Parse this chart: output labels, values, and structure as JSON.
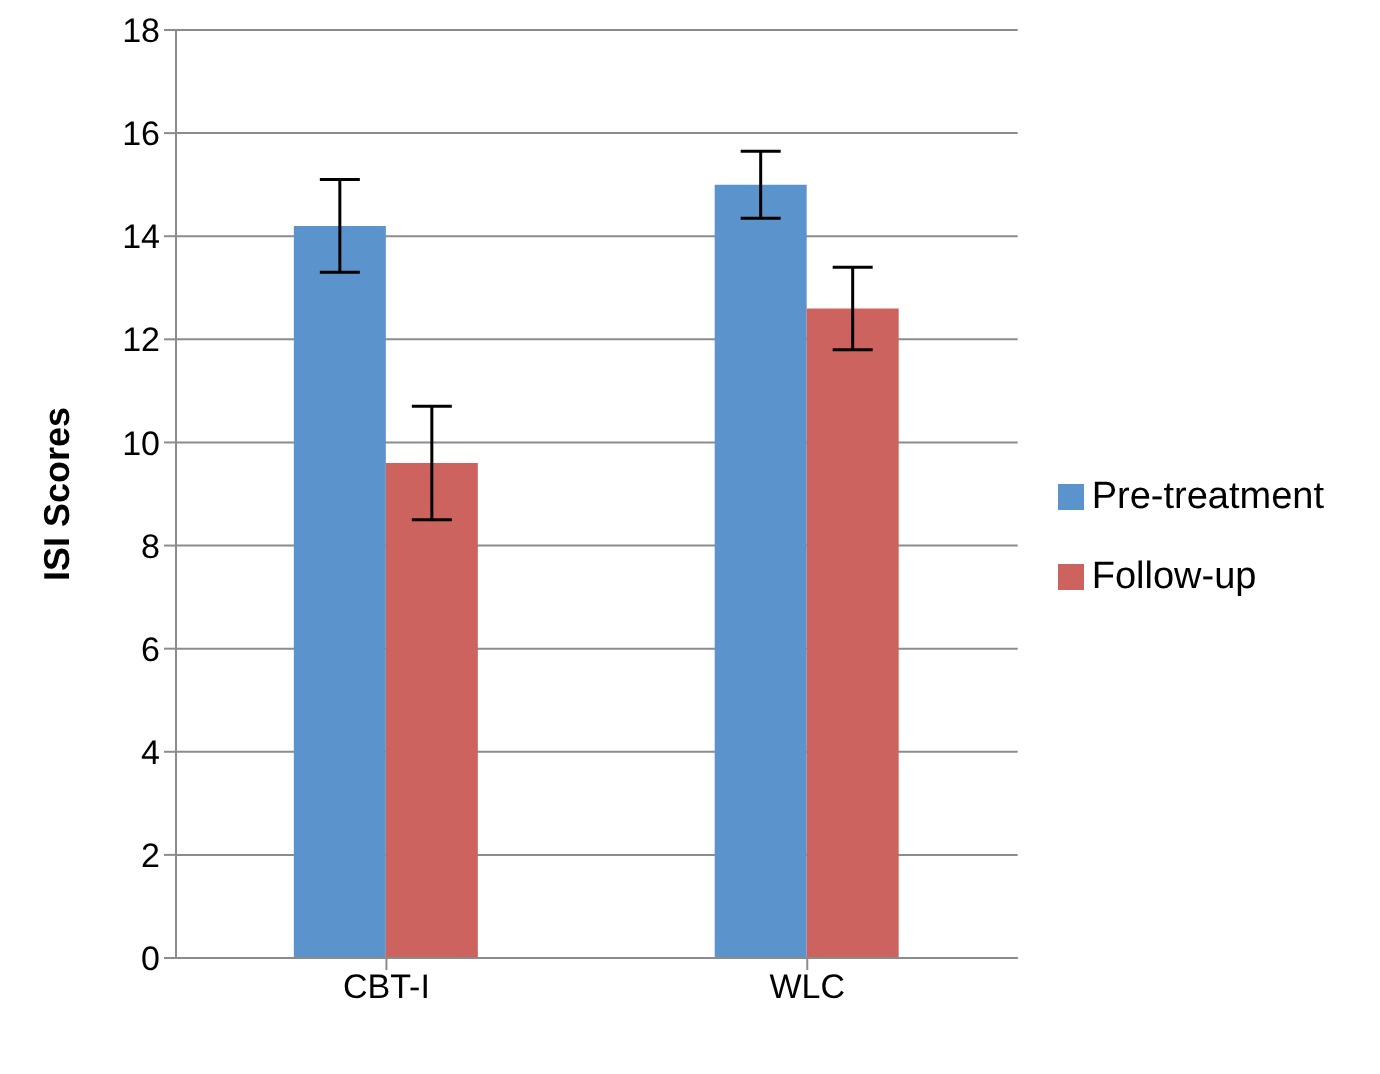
{
  "chart_data": {
    "type": "bar",
    "ylabel": "ISI Scores",
    "categories": [
      "CBT-I",
      "WLC"
    ],
    "series": [
      {
        "name": "Pre-treatment",
        "color": "#5b93cc",
        "values": [
          14.2,
          15.0
        ],
        "errors": [
          0.9,
          0.65
        ]
      },
      {
        "name": "Follow-up",
        "color": "#cd635e",
        "values": [
          9.6,
          12.6
        ],
        "errors": [
          1.1,
          0.8
        ]
      }
    ],
    "ylim": [
      0,
      18
    ],
    "yticks": [
      0,
      2,
      4,
      6,
      8,
      10,
      12,
      14,
      16,
      18
    ],
    "grid": "y",
    "legend": "right"
  }
}
